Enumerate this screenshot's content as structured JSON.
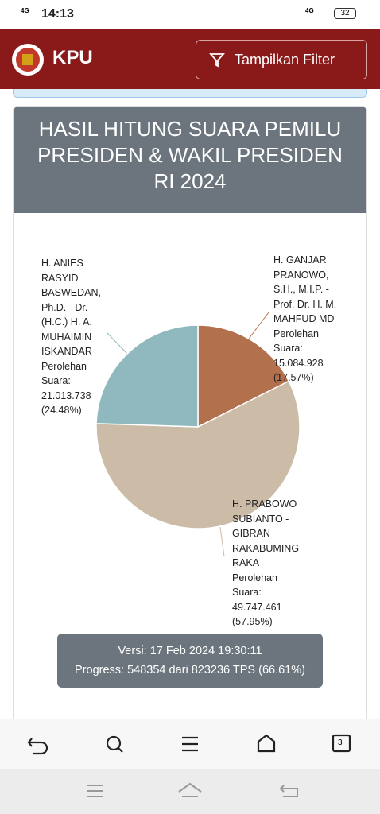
{
  "status_bar": {
    "network": "4G",
    "time": "14:13",
    "network_right": "4G",
    "battery": "32"
  },
  "header": {
    "brand": "KPU",
    "filter_button": "Tampilkan Filter"
  },
  "chart_data": {
    "type": "pie",
    "title": "HASIL HITUNG SUARA PEMILU PRESIDEN & WAKIL PRESIDEN RI 2024",
    "categories": [
      "H. GANJAR PRANOWO, S.H., M.I.P. - Prof. Dr. H. M. MAHFUD MD",
      "H. PRABOWO SUBIANTO - GIBRAN RAKABUMING RAKA",
      "H. ANIES RASYID BASWEDAN, Ph.D. - Dr. (H.C.) H. A. MUHAIMIN ISKANDAR"
    ],
    "values": [
      17.57,
      57.95,
      24.48
    ],
    "value_labels": [
      "(17.57%)",
      "(57.95%)",
      "(24.48%)"
    ],
    "votes": [
      "15.084.928",
      "49.747.461",
      "21.013.738"
    ],
    "vote_caption": "Perolehan Suara:",
    "colors": [
      "#b3704c",
      "#cbbba7",
      "#8fb9be"
    ]
  },
  "info": {
    "version": "Versi: 17 Feb 2024 19:30:11",
    "progress": "Progress: 548354 dari 823236 TPS (66.61%)"
  },
  "browser_bar": {
    "tab_count": "3"
  }
}
